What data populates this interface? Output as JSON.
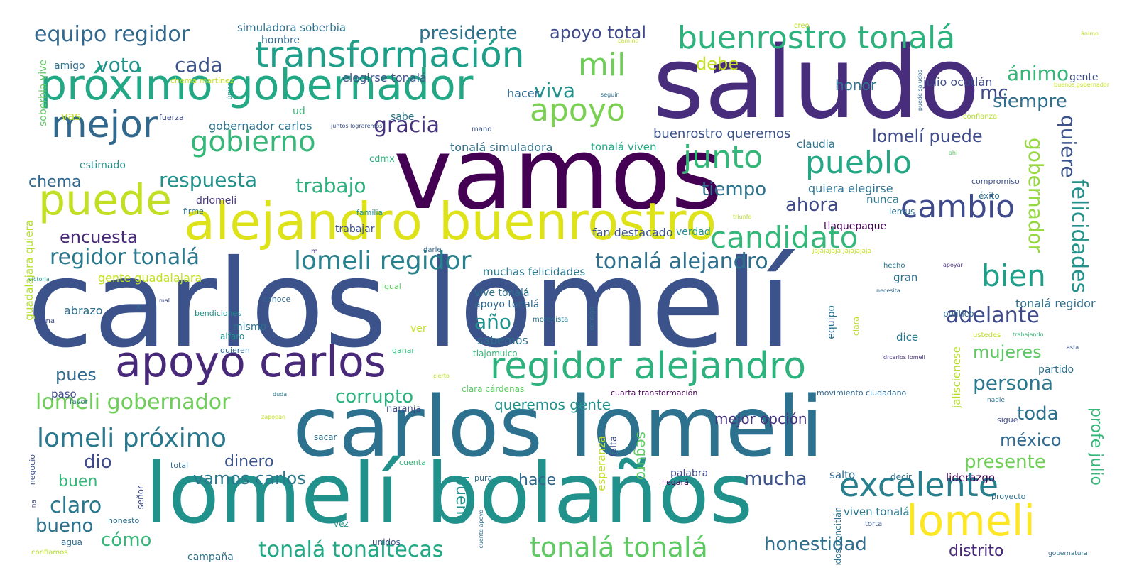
{
  "word_cloud": {
    "words": [
      "carlos lomelí",
      "vamos",
      "saludo",
      "carlos lomeli",
      "lomelí bolaños",
      "alejandro buenrostro",
      "próximo gobernador",
      "apoyo carlos",
      "regidor alejandro",
      "transformación",
      "buenrostro tonalá",
      "puede",
      "mejor",
      "lomeli",
      "excelente",
      "apoyo",
      "junto",
      "pueblo",
      "mil",
      "candidato",
      "cambio",
      "gobierno",
      "bien",
      "lomeli regidor",
      "lomeli próximo",
      "felicidades",
      "tonalá tonalá",
      "tonalá tonaltecas",
      "gobernador",
      "quiere",
      "adelante",
      "regidor tonalá",
      "lomeli gobernador",
      "tonalá alejandro",
      "equipo regidor",
      "presidente",
      "apoyo total",
      "voto",
      "cada",
      "debe",
      "mc",
      "ánimo",
      "siempre",
      "viva",
      "gracia",
      "lomelí puede",
      "respuesta",
      "trabajo",
      "chema",
      "tiempo",
      "ahora",
      "encuesta",
      "persona",
      "año",
      "mujeres",
      "corrupto",
      "pues",
      "toda",
      "méxico",
      "presente",
      "profe julio",
      "claro",
      "buen",
      "bueno",
      "dio",
      "dinero",
      "vamos carlos",
      "mucha",
      "hace",
      "buena",
      "seguro",
      "cómo",
      "honestidad",
      "distrito",
      "mejor opción",
      "honor",
      "julio ocotlán",
      "simuladora soberbia",
      "hombre",
      "amigo",
      "elegirse tonalá",
      "hacer",
      "buenrostro queremos",
      "gobernador carlos",
      "tonalá simuladora",
      "tonalá viven",
      "queremos gente",
      "sabemos",
      "apoyo tonalá",
      "vive tonalá",
      "muchas felicidades",
      "fan destacado",
      "quiera elegirse",
      "gente guadalajara",
      "guadalajara quiera",
      "soberbia vive",
      "abrazo",
      "mismo",
      "alfaro",
      "conoce",
      "bendiciones",
      "ud",
      "sabe",
      "vas",
      "estimado",
      "cdmx",
      "drlomeli",
      "trabajar",
      "firme",
      "familia",
      "verdad",
      "nunca",
      "lemus",
      "tlaquepaque",
      "claudia",
      "gente",
      "compromiso",
      "éxito",
      "político",
      "tonalá regidor",
      "gran",
      "dice",
      "equipo",
      "clara",
      "ver",
      "quieren",
      "ganar",
      "tlajomulco",
      "clara cárdenas",
      "cuarta transformación",
      "movimiento ciudadano",
      "jaliscienese",
      "partido",
      "paso",
      "naranja",
      "sacar",
      "falta",
      "esperanza",
      "palabra",
      "salto",
      "decir",
      "liderazgo",
      "proyecto",
      "viven tonalá",
      "saludos poncitlán",
      "cuenta",
      "pura",
      "total",
      "señor",
      "negocio",
      "honesto",
      "agua",
      "unidos",
      "vez",
      "campaña",
      "confiamos",
      "llegará",
      "torta",
      "sigue",
      "nadie",
      "chema martínez",
      "fuerza",
      "mano",
      "único",
      "juntos lograremos",
      "creo",
      "camino",
      "seguir",
      "puede saludos",
      "ahí",
      "buenos gobernador",
      "confianza",
      "igual",
      "hecho",
      "apoyar",
      "necesita",
      "dos",
      "contigo",
      "morenista",
      "ustedes",
      "trabajando",
      "asta",
      "drcarlos lomeli",
      "cierto",
      "duda",
      "zapopan",
      "favor",
      "gana",
      "victoria",
      "mal",
      "x",
      "darle",
      "m",
      "jajajajaja jajajajaja",
      "triunfo",
      "ánimo",
      "gobernatura",
      "na",
      "cuente apoyo"
    ]
  }
}
